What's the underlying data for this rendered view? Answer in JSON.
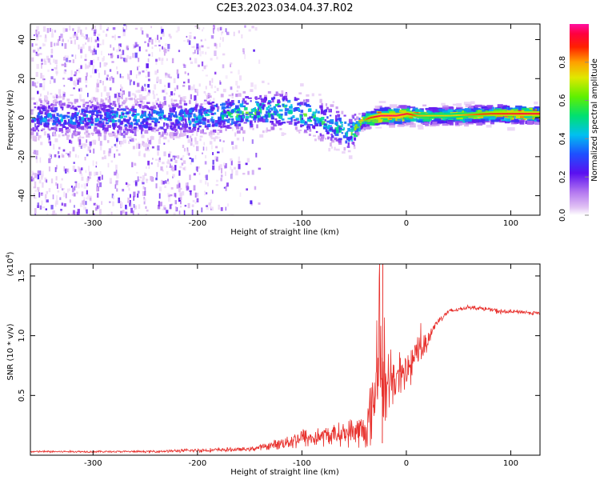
{
  "figure": {
    "title": "C2E3.2023.034.04.37.R02"
  },
  "colors": {
    "background": "#ffffff",
    "axis": "#000000",
    "snr_line": "#e8322e",
    "colormap": [
      "#ffffff",
      "#d9b0f0",
      "#8a3cf0",
      "#5a10f0",
      "#2050ff",
      "#00c8e8",
      "#00e070",
      "#a0f000",
      "#ffd000",
      "#ff4000",
      "#ff0040",
      "#ff10a0"
    ]
  },
  "chart_data": [
    {
      "type": "heatmap",
      "title": "C2E3.2023.034.04.37.R02",
      "xlabel": "Height of straight line (km)",
      "ylabel": "Frequency (Hz)",
      "xlim": [
        -360,
        128
      ],
      "ylim": [
        -50,
        48
      ],
      "xticks": [
        -300,
        -200,
        -100,
        0,
        100
      ],
      "yticks": [
        -40,
        -20,
        0,
        20,
        40
      ],
      "colorbar": {
        "label": "Normalized spectral amplitude",
        "range": [
          0,
          1
        ],
        "ticks": [
          0.0,
          0.2,
          0.4,
          0.6,
          0.8
        ]
      },
      "ridge": {
        "x": [
          -360,
          -200,
          -180,
          -150,
          -120,
          -100,
          -80,
          -65,
          -55,
          -45,
          -35,
          -25,
          -10,
          0,
          10,
          40,
          80,
          110,
          128
        ],
        "y": [
          0,
          0,
          2,
          3,
          4,
          2,
          -2,
          -5,
          -8,
          -2,
          0,
          1,
          1,
          2,
          1,
          1,
          2,
          2,
          2
        ],
        "peak_amplitude": [
          0.4,
          0.45,
          0.5,
          0.55,
          0.55,
          0.55,
          0.5,
          0.5,
          0.5,
          0.7,
          0.85,
          0.95,
          0.95,
          0.9,
          0.75,
          0.7,
          0.85,
          0.9,
          0.9
        ]
      },
      "scatter_extent_x": [
        -360,
        -140
      ]
    },
    {
      "type": "line",
      "xlabel": "Height of straight line (km)",
      "ylabel": "SNR (10 * v/v)",
      "y_multiplier": "(x10",
      "y_multiplier_exp": "4",
      "y_multiplier_close": ")",
      "xlim": [
        -360,
        128
      ],
      "ylim": [
        0,
        1.6
      ],
      "xticks": [
        -300,
        -200,
        -100,
        0,
        100
      ],
      "yticks": [
        0.5,
        1.0,
        1.5
      ],
      "ytick_labels": [
        "0.5",
        "1.0",
        "1.5"
      ],
      "series": [
        {
          "x": [
            -360,
            -300,
            -250,
            -200,
            -150,
            -130,
            -110,
            -100,
            -90,
            -80,
            -70,
            -60,
            -50,
            -40,
            -35,
            -30,
            -25,
            -20,
            -15,
            -10,
            -5,
            0,
            5,
            10,
            15,
            20,
            25,
            30,
            35,
            40,
            50,
            60,
            70,
            80,
            90,
            100,
            110,
            120,
            128
          ],
          "y": [
            0.03,
            0.03,
            0.03,
            0.04,
            0.05,
            0.08,
            0.12,
            0.15,
            0.14,
            0.16,
            0.17,
            0.18,
            0.2,
            0.2,
            0.3,
            0.55,
            0.85,
            0.5,
            0.55,
            0.65,
            0.6,
            0.7,
            0.75,
            0.85,
            0.9,
            0.95,
            1.05,
            1.12,
            1.16,
            1.2,
            1.22,
            1.24,
            1.23,
            1.22,
            1.2,
            1.2,
            1.2,
            1.19,
            1.19
          ],
          "noise_amplitude": [
            0.01,
            0.01,
            0.01,
            0.02,
            0.02,
            0.04,
            0.08,
            0.1,
            0.1,
            0.1,
            0.1,
            0.12,
            0.15,
            0.2,
            0.3,
            0.5,
            0.45,
            0.35,
            0.3,
            0.25,
            0.25,
            0.25,
            0.2,
            0.2,
            0.15,
            0.1,
            0.06,
            0.04,
            0.03,
            0.03,
            0.02,
            0.02,
            0.02,
            0.02,
            0.03,
            0.02,
            0.02,
            0.02,
            0.02
          ]
        }
      ]
    }
  ]
}
